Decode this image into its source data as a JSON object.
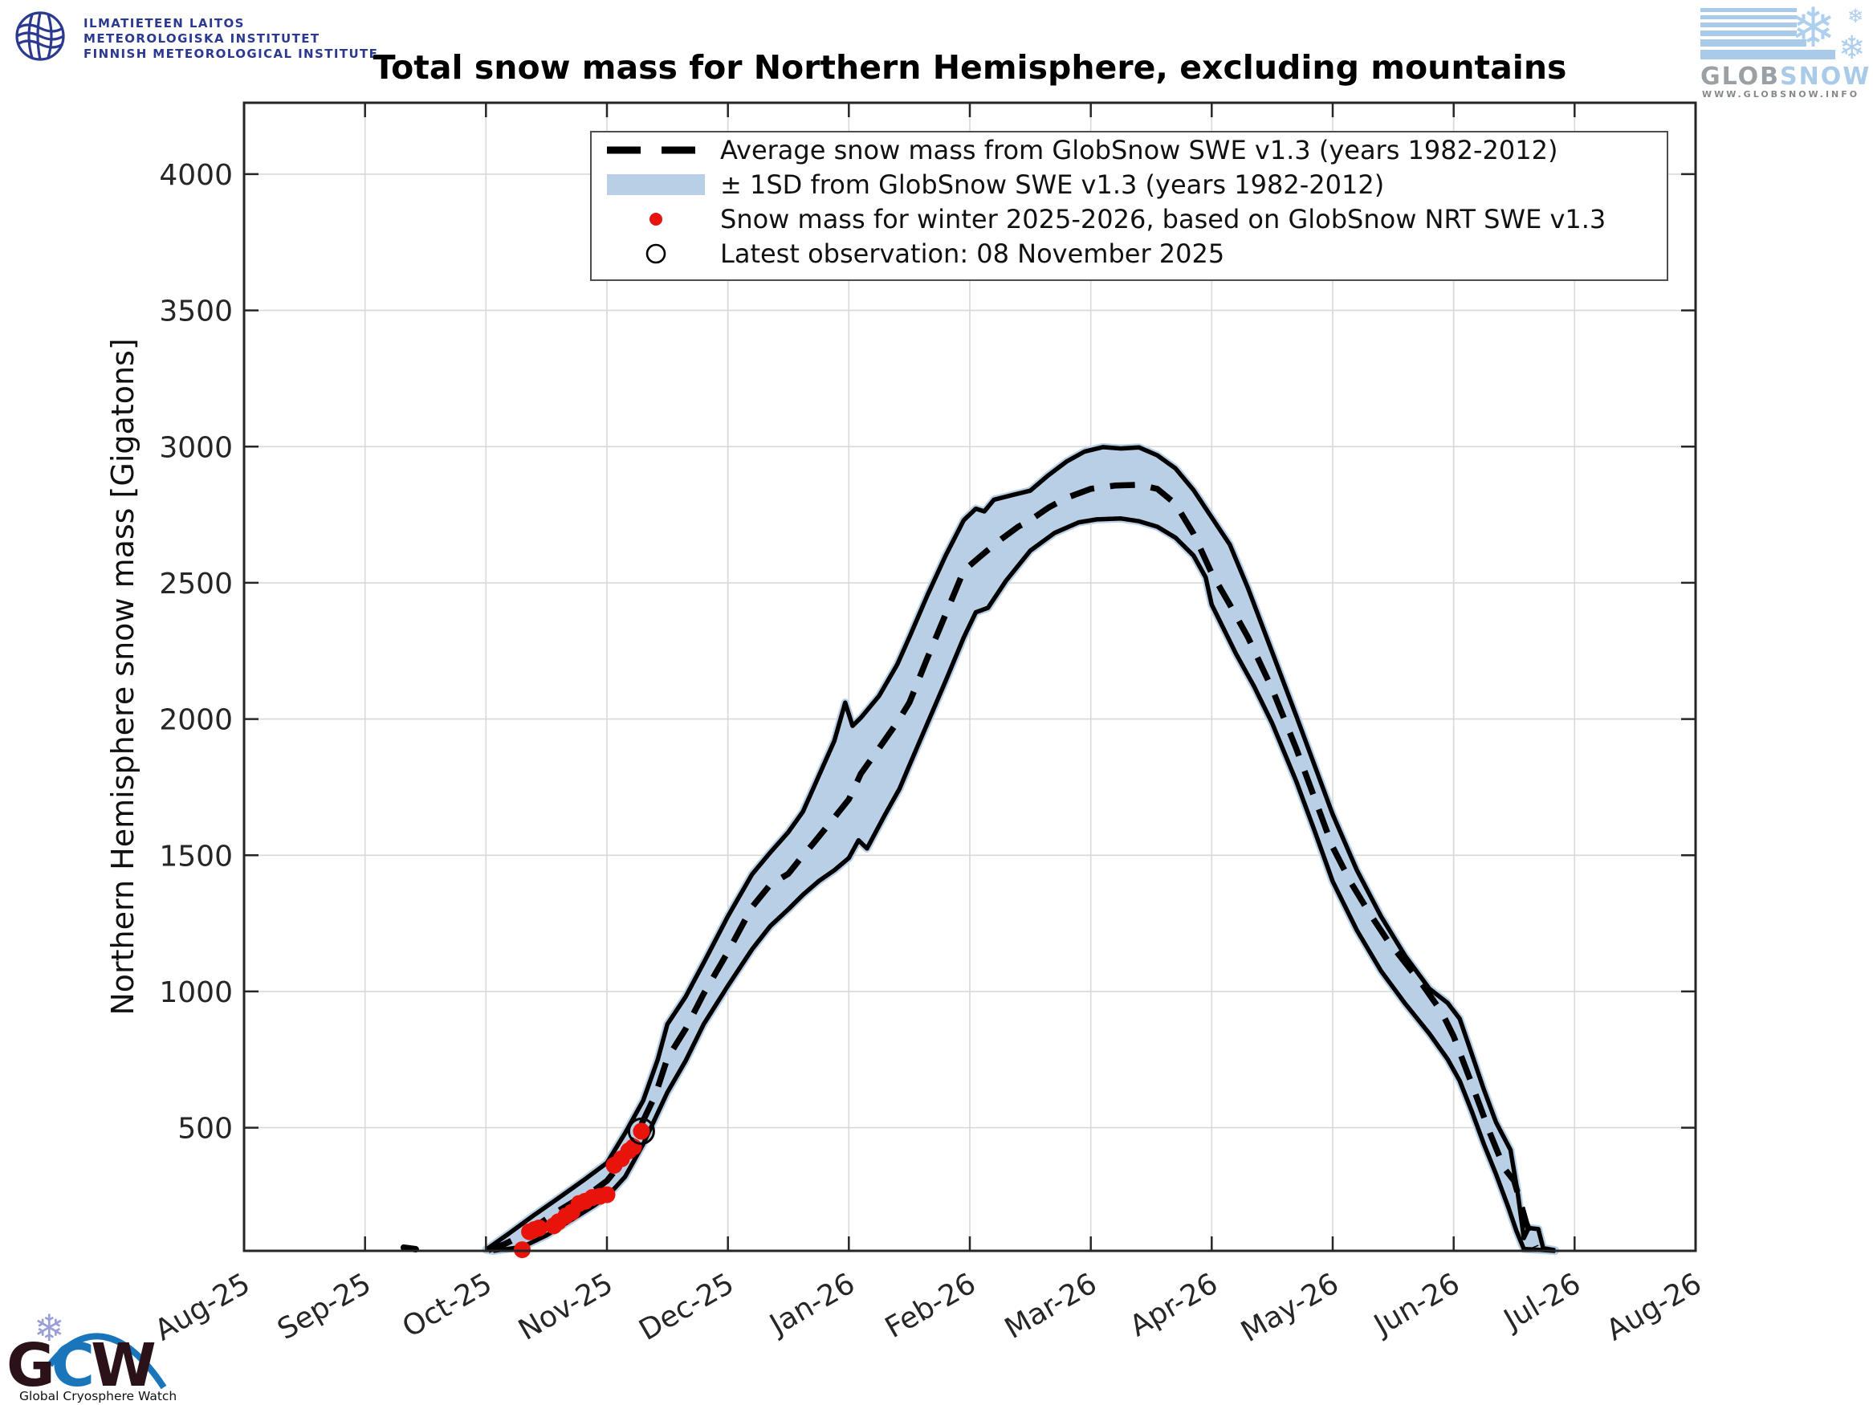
{
  "header": {
    "fmi_logo_lines": [
      "ILMATIETEEN LAITOS",
      "METEOROLOGISKA INSTITUTET",
      "FINNISH METEOROLOGICAL INSTITUTE"
    ],
    "globsnow_logo": {
      "text_glob": "GLOB",
      "text_snow": "SNOW",
      "url": "WWW.GLOBSNOW.INFO",
      "snowflake_icon": "❄"
    }
  },
  "footer_logo": {
    "letters": [
      {
        "ch": "G",
        "color": "#2b1118"
      },
      {
        "ch": "C",
        "color": "#1b75bb"
      },
      {
        "ch": "W",
        "color": "#2b1118"
      }
    ],
    "caption": "Global Cryosphere Watch",
    "snowflake_icon": "❄"
  },
  "chart_data": {
    "type": "line",
    "title": "Total snow mass for Northern Hemisphere, excluding mountains",
    "ylabel": "Northern Hemisphere snow mass [Gigatons]",
    "xlabel": "",
    "x_unit": "months after 01 Aug 2025",
    "y_unit": "Gigatons",
    "xlim": [
      0,
      12
    ],
    "ylim": [
      48,
      4262
    ],
    "grid": true,
    "legend_position": "upper-left-inside",
    "x_tick_labels": [
      "Aug-25",
      "Sep-25",
      "Oct-25",
      "Nov-25",
      "Dec-25",
      "Jan-26",
      "Feb-26",
      "Mar-26",
      "Apr-26",
      "May-26",
      "Jun-26",
      "Jul-26",
      "Aug-26"
    ],
    "y_ticks": [
      500,
      1000,
      1500,
      2000,
      2500,
      3000,
      3500,
      4000
    ],
    "colors": {
      "band_fill": "#b9cfe5",
      "band_edge": "#000000",
      "average_line": "#000000",
      "current_dots": "#e8130b",
      "latest_circle": "#000000",
      "grid": "#d9d9d9",
      "frame": "#262626"
    },
    "legend": [
      {
        "key": "average",
        "marker": "dashed-line",
        "label": "Average snow mass from GlobSnow SWE v1.3 (years 1982-2012)"
      },
      {
        "key": "band",
        "marker": "filled-band",
        "label": "± 1SD from GlobSnow SWE v1.3 (years 1982-2012)"
      },
      {
        "key": "current",
        "marker": "red-dot",
        "label": "Snow mass for winter 2025-2026, based on GlobSnow NRT SWE v1.3"
      },
      {
        "key": "latest",
        "marker": "open-circle",
        "label": "Latest observation: 08 November 2025"
      }
    ],
    "series": {
      "average_1982_2012": {
        "style": "dashed",
        "points": [
          [
            2.02,
            50
          ],
          [
            2.15,
            72
          ],
          [
            2.3,
            105
          ],
          [
            2.45,
            150
          ],
          [
            2.6,
            195
          ],
          [
            2.75,
            235
          ],
          [
            2.9,
            272
          ],
          [
            3.0,
            305
          ],
          [
            3.1,
            360
          ],
          [
            3.25,
            480
          ],
          [
            3.4,
            620
          ],
          [
            3.5,
            755
          ],
          [
            3.65,
            862
          ],
          [
            3.8,
            992
          ],
          [
            4.0,
            1145
          ],
          [
            4.2,
            1310
          ],
          [
            4.35,
            1392
          ],
          [
            4.5,
            1432
          ],
          [
            4.6,
            1488
          ],
          [
            4.7,
            1540
          ],
          [
            4.85,
            1622
          ],
          [
            5.0,
            1705
          ],
          [
            5.1,
            1800
          ],
          [
            5.25,
            1893
          ],
          [
            5.4,
            1988
          ],
          [
            5.5,
            2060
          ],
          [
            5.65,
            2225
          ],
          [
            5.8,
            2385
          ],
          [
            5.95,
            2545
          ],
          [
            6.1,
            2602
          ],
          [
            6.25,
            2657
          ],
          [
            6.4,
            2706
          ],
          [
            6.5,
            2730
          ],
          [
            6.65,
            2776
          ],
          [
            6.8,
            2812
          ],
          [
            7.0,
            2845
          ],
          [
            7.2,
            2857
          ],
          [
            7.4,
            2860
          ],
          [
            7.55,
            2845
          ],
          [
            7.7,
            2790
          ],
          [
            7.85,
            2680
          ],
          [
            8.0,
            2535
          ],
          [
            8.15,
            2420
          ],
          [
            8.3,
            2300
          ],
          [
            8.5,
            2110
          ],
          [
            8.7,
            1890
          ],
          [
            8.85,
            1710
          ],
          [
            9.0,
            1530
          ],
          [
            9.15,
            1400
          ],
          [
            9.3,
            1290
          ],
          [
            9.45,
            1190
          ],
          [
            9.6,
            1105
          ],
          [
            9.75,
            1020
          ],
          [
            9.9,
            925
          ],
          [
            10.0,
            835
          ],
          [
            10.15,
            660
          ],
          [
            10.3,
            480
          ],
          [
            10.42,
            350
          ],
          [
            10.5,
            305
          ],
          [
            10.55,
            230
          ],
          [
            10.6,
            150
          ],
          [
            10.65,
            95
          ],
          [
            10.68,
            62
          ]
        ]
      },
      "band_upper_1sd": {
        "points": [
          [
            2.0,
            52
          ],
          [
            2.2,
            115
          ],
          [
            2.4,
            180
          ],
          [
            2.6,
            242
          ],
          [
            2.8,
            305
          ],
          [
            3.0,
            371
          ],
          [
            3.15,
            480
          ],
          [
            3.3,
            600
          ],
          [
            3.42,
            750
          ],
          [
            3.5,
            880
          ],
          [
            3.65,
            980
          ],
          [
            3.8,
            1105
          ],
          [
            4.0,
            1276
          ],
          [
            4.2,
            1430
          ],
          [
            4.35,
            1510
          ],
          [
            4.5,
            1585
          ],
          [
            4.62,
            1660
          ],
          [
            4.75,
            1790
          ],
          [
            4.88,
            1920
          ],
          [
            4.97,
            2060
          ],
          [
            5.03,
            1975
          ],
          [
            5.1,
            2005
          ],
          [
            5.25,
            2085
          ],
          [
            5.4,
            2200
          ],
          [
            5.5,
            2300
          ],
          [
            5.65,
            2455
          ],
          [
            5.8,
            2600
          ],
          [
            5.95,
            2730
          ],
          [
            6.05,
            2772
          ],
          [
            6.12,
            2762
          ],
          [
            6.2,
            2805
          ],
          [
            6.35,
            2822
          ],
          [
            6.5,
            2838
          ],
          [
            6.65,
            2895
          ],
          [
            6.8,
            2945
          ],
          [
            6.95,
            2982
          ],
          [
            7.1,
            2998
          ],
          [
            7.25,
            2993
          ],
          [
            7.4,
            2997
          ],
          [
            7.55,
            2968
          ],
          [
            7.7,
            2920
          ],
          [
            7.85,
            2840
          ],
          [
            8.0,
            2740
          ],
          [
            8.15,
            2640
          ],
          [
            8.3,
            2480
          ],
          [
            8.5,
            2245
          ],
          [
            8.7,
            2010
          ],
          [
            8.85,
            1830
          ],
          [
            9.0,
            1650
          ],
          [
            9.2,
            1445
          ],
          [
            9.4,
            1275
          ],
          [
            9.6,
            1130
          ],
          [
            9.8,
            1010
          ],
          [
            9.95,
            958
          ],
          [
            10.05,
            900
          ],
          [
            10.15,
            770
          ],
          [
            10.25,
            640
          ],
          [
            10.35,
            520
          ],
          [
            10.47,
            418
          ],
          [
            10.53,
            260
          ],
          [
            10.58,
            95
          ],
          [
            10.62,
            132
          ],
          [
            10.7,
            128
          ],
          [
            10.74,
            58
          ],
          [
            10.84,
            50
          ]
        ]
      },
      "band_lower_1sd": {
        "points": [
          [
            2.06,
            48
          ],
          [
            2.3,
            62
          ],
          [
            2.5,
            105
          ],
          [
            2.7,
            160
          ],
          [
            2.9,
            216
          ],
          [
            3.0,
            247
          ],
          [
            3.15,
            320
          ],
          [
            3.3,
            440
          ],
          [
            3.5,
            630
          ],
          [
            3.65,
            745
          ],
          [
            3.8,
            880
          ],
          [
            4.0,
            1021
          ],
          [
            4.2,
            1155
          ],
          [
            4.35,
            1240
          ],
          [
            4.5,
            1302
          ],
          [
            4.62,
            1355
          ],
          [
            4.75,
            1405
          ],
          [
            4.88,
            1445
          ],
          [
            5.0,
            1490
          ],
          [
            5.08,
            1555
          ],
          [
            5.15,
            1525
          ],
          [
            5.3,
            1650
          ],
          [
            5.42,
            1745
          ],
          [
            5.5,
            1830
          ],
          [
            5.65,
            1985
          ],
          [
            5.8,
            2140
          ],
          [
            5.95,
            2300
          ],
          [
            6.05,
            2392
          ],
          [
            6.15,
            2408
          ],
          [
            6.3,
            2508
          ],
          [
            6.5,
            2618
          ],
          [
            6.7,
            2683
          ],
          [
            6.9,
            2722
          ],
          [
            7.05,
            2733
          ],
          [
            7.25,
            2736
          ],
          [
            7.4,
            2726
          ],
          [
            7.55,
            2706
          ],
          [
            7.7,
            2666
          ],
          [
            7.85,
            2600
          ],
          [
            7.95,
            2520
          ],
          [
            8.0,
            2420
          ],
          [
            8.1,
            2330
          ],
          [
            8.2,
            2240
          ],
          [
            8.35,
            2120
          ],
          [
            8.5,
            1984
          ],
          [
            8.7,
            1770
          ],
          [
            8.85,
            1590
          ],
          [
            9.0,
            1404
          ],
          [
            9.2,
            1225
          ],
          [
            9.4,
            1075
          ],
          [
            9.6,
            955
          ],
          [
            9.8,
            845
          ],
          [
            9.95,
            752
          ],
          [
            10.05,
            672
          ],
          [
            10.15,
            560
          ],
          [
            10.25,
            440
          ],
          [
            10.35,
            330
          ],
          [
            10.45,
            210
          ],
          [
            10.52,
            120
          ],
          [
            10.58,
            55
          ],
          [
            10.84,
            48
          ]
        ]
      },
      "winter_2025_2026_dots": {
        "points": [
          [
            2.3,
            52
          ],
          [
            2.36,
            118
          ],
          [
            2.4,
            126
          ],
          [
            2.44,
            132
          ],
          [
            2.56,
            140
          ],
          [
            2.6,
            155
          ],
          [
            2.66,
            176
          ],
          [
            2.71,
            190
          ],
          [
            2.77,
            222
          ],
          [
            2.82,
            230
          ],
          [
            2.88,
            244
          ],
          [
            2.94,
            248
          ],
          [
            3.0,
            254
          ],
          [
            3.06,
            362
          ],
          [
            3.12,
            386
          ],
          [
            3.18,
            415
          ],
          [
            3.22,
            429
          ],
          [
            3.285,
            487
          ]
        ]
      },
      "latest_observation": {
        "date_label": "08 November 2025",
        "point": [
          3.285,
          487
        ]
      },
      "september_axis_artifact": {
        "points": [
          [
            1.32,
            60
          ],
          [
            1.42,
            54
          ]
        ]
      }
    }
  }
}
